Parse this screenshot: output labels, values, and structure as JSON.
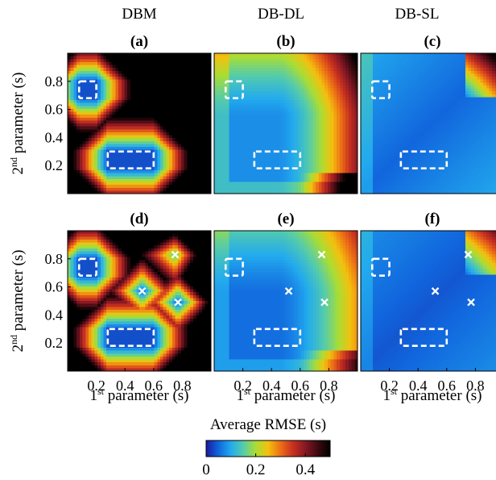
{
  "columns": [
    "DBM",
    "DB-DL",
    "DB-SL"
  ],
  "chart_data": {
    "type": "heatmap",
    "panels": [
      {
        "label": "(a)",
        "method": "DBM",
        "markers": []
      },
      {
        "label": "(b)",
        "method": "DB-DL",
        "markers": []
      },
      {
        "label": "(c)",
        "method": "DB-SL",
        "markers": []
      },
      {
        "label": "(d)",
        "method": "DBM",
        "markers": [
          [
            0.52,
            0.57
          ],
          [
            0.75,
            0.83
          ],
          [
            0.77,
            0.49
          ]
        ]
      },
      {
        "label": "(e)",
        "method": "DB-DL",
        "markers": [
          [
            0.52,
            0.57
          ],
          [
            0.75,
            0.83
          ],
          [
            0.77,
            0.49
          ]
        ]
      },
      {
        "label": "(f)",
        "method": "DB-SL",
        "markers": [
          [
            0.52,
            0.57
          ],
          [
            0.75,
            0.83
          ],
          [
            0.77,
            0.49
          ]
        ]
      }
    ],
    "training_regions": [
      {
        "x": [
          0.08,
          0.2
        ],
        "y": [
          0.68,
          0.8
        ]
      },
      {
        "x": [
          0.28,
          0.6
        ],
        "y": [
          0.18,
          0.3
        ]
      }
    ],
    "xlabel": "1st parameter (s)",
    "ylabel": "2nd parameter (s)",
    "xlim": [
      0,
      1
    ],
    "ylim": [
      0,
      1
    ],
    "xticks": [
      "0.2",
      "0.4",
      "0.6",
      "0.8"
    ],
    "xtick_values": [
      0.2,
      0.4,
      0.6,
      0.8
    ],
    "yticks": [
      "0.2",
      "0.4",
      "0.6",
      "0.8"
    ],
    "ytick_values": [
      0.2,
      0.4,
      0.6,
      0.8
    ],
    "colorbar": {
      "label": "Average RMSE (s)",
      "range": [
        0,
        0.5
      ],
      "ticks": [
        "0",
        "0.2",
        "0.4"
      ],
      "tick_values": [
        0,
        0.2,
        0.4
      ],
      "colormap": [
        "#1a1a9e",
        "#1166dd",
        "#22aaee",
        "#55ccaa",
        "#aadd33",
        "#f4c00e",
        "#ec6e16",
        "#c7301f",
        "#861824",
        "#3c0a10",
        "#000000"
      ]
    }
  },
  "axis_label": {
    "x_main": "1",
    "x_sup": "st",
    "x_rest": " parameter (s)",
    "y_main": "2",
    "y_sup": "nd",
    "y_rest": " parameter (s)"
  }
}
